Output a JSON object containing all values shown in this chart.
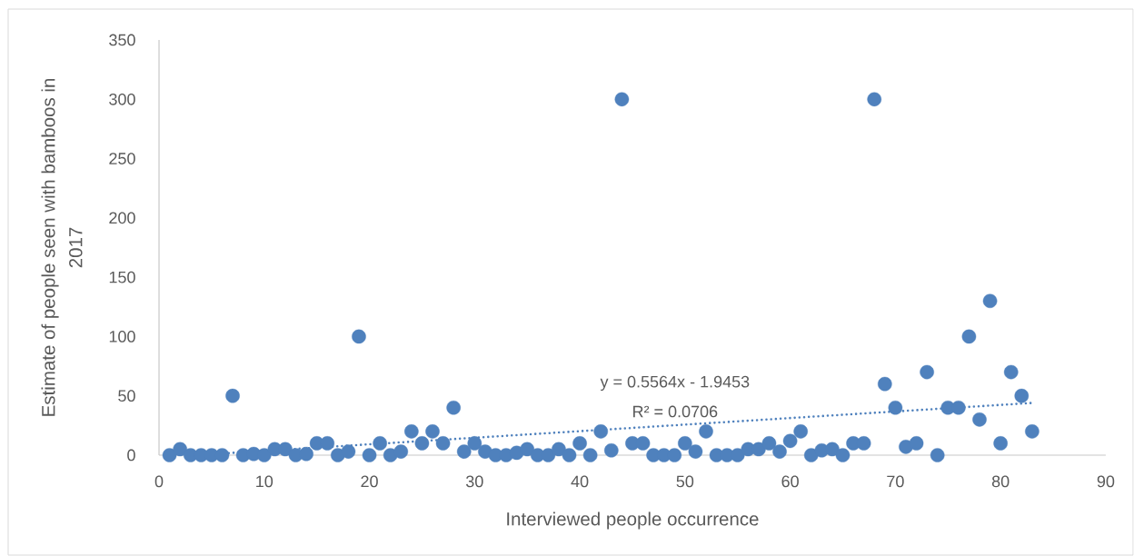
{
  "chart_data": {
    "type": "scatter",
    "xlabel": "Interviewed people occurrence",
    "ylabel": "Estimate of people seen with bamboos in 2017",
    "xlim": [
      0,
      90
    ],
    "xticks": [
      0,
      10,
      20,
      30,
      40,
      50,
      60,
      70,
      80,
      90
    ],
    "ylim": [
      0,
      350
    ],
    "yticks": [
      0,
      50,
      100,
      150,
      200,
      250,
      300,
      350
    ],
    "series": [
      {
        "color": "#4f81bd",
        "marker": "circle",
        "x": [
          1,
          2,
          3,
          4,
          5,
          6,
          7,
          8,
          9,
          10,
          11,
          12,
          13,
          14,
          15,
          16,
          17,
          18,
          19,
          20,
          21,
          22,
          23,
          24,
          25,
          26,
          27,
          28,
          29,
          30,
          31,
          32,
          33,
          34,
          35,
          36,
          37,
          38,
          39,
          40,
          41,
          42,
          43,
          44,
          45,
          46,
          47,
          48,
          49,
          50,
          51,
          52,
          53,
          54,
          55,
          56,
          57,
          58,
          59,
          60,
          61,
          62,
          63,
          64,
          65,
          66,
          67,
          68,
          69,
          70,
          71,
          72,
          73,
          74,
          75,
          76,
          77,
          78,
          79,
          80,
          81,
          82,
          83
        ],
        "values": [
          0,
          5,
          0,
          0,
          0,
          0,
          50,
          0,
          1,
          0,
          5,
          5,
          0,
          1,
          10,
          10,
          0,
          3,
          100,
          0,
          10,
          0,
          3,
          20,
          10,
          20,
          10,
          40,
          3,
          10,
          3,
          0,
          0,
          2,
          5,
          0,
          0,
          5,
          0,
          10,
          0,
          20,
          4,
          300,
          10,
          10,
          0,
          0,
          0,
          10,
          3,
          20,
          0,
          0,
          0,
          5,
          5,
          10,
          3,
          12,
          20,
          0,
          4,
          5,
          0,
          10,
          10,
          300,
          60,
          40,
          7,
          10,
          70,
          0,
          40,
          40,
          100,
          30,
          130,
          10,
          70,
          50,
          20
        ]
      },
      {
        "type": "line",
        "color": "#4f81bd",
        "marker": "none",
        "line_style": "dotted",
        "x": [
          3.5,
          83
        ],
        "values": [
          0,
          44
        ]
      }
    ],
    "annotations": [
      "y = 0.5564x - 1.9453",
      "R² = 0.0706"
    ]
  }
}
